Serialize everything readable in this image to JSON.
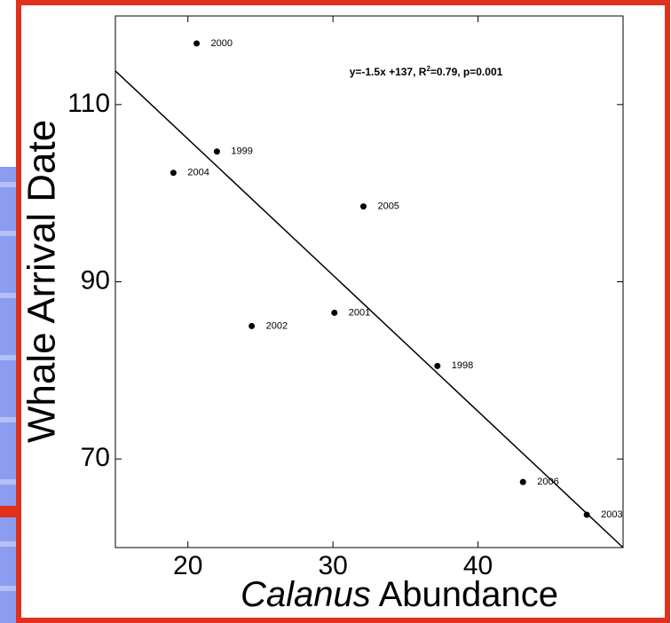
{
  "chart_data": {
    "type": "scatter",
    "xlabel": [
      "Calanus",
      "Abundance"
    ],
    "ylabel": "Whale Arrival Date",
    "annotation": [
      "y=-1.5x +137, R",
      "2",
      "=0.79, p=0.001"
    ],
    "labels": [
      "2000",
      "1999",
      "2004",
      "2005",
      "2001",
      "2002",
      "1998",
      "2006",
      "2003"
    ],
    "x": [
      20.6,
      22.0,
      19.0,
      32.1,
      30.1,
      24.4,
      37.2,
      43.1,
      47.5
    ],
    "values": [
      116.9,
      104.7,
      102.3,
      98.5,
      86.5,
      85.0,
      80.5,
      67.4,
      63.7
    ],
    "color": "#000000",
    "trend_line": {
      "x": [
        15,
        50
      ],
      "values": [
        113.8,
        60
      ]
    },
    "xlim": [
      15,
      50
    ],
    "ylim": [
      60,
      120
    ],
    "xticks": [
      20,
      30,
      40
    ],
    "yticks": [
      70,
      90,
      110
    ]
  }
}
